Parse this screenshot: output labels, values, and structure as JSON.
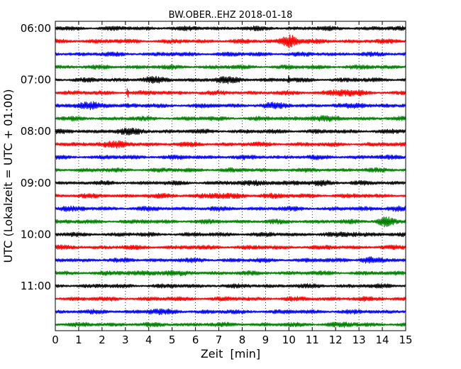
{
  "chart_data": {
    "type": "line",
    "title": "BW.OBER..EHZ 2018-01-18",
    "xlabel": "Zeit  [min]",
    "ylabel": "UTC (Lokalzeit = UTC + 01:00)",
    "xlim": [
      0,
      15
    ],
    "x_ticks": [
      "0",
      "1",
      "2",
      "3",
      "4",
      "5",
      "6",
      "7",
      "8",
      "9",
      "10",
      "11",
      "12",
      "13",
      "14",
      "15"
    ],
    "y_ticks": [
      {
        "label": "06:00",
        "row": 0
      },
      {
        "label": "07:00",
        "row": 4
      },
      {
        "label": "08:00",
        "row": 8
      },
      {
        "label": "09:00",
        "row": 12
      },
      {
        "label": "10:00",
        "row": 16
      },
      {
        "label": "11:00",
        "row": 20
      }
    ],
    "grid": "vertical-dotted",
    "row_minutes": 15,
    "series_colors": [
      "#000000",
      "#ff0000",
      "#0000ff",
      "#008000"
    ],
    "rows": [
      {
        "start": "06:00",
        "events": []
      },
      {
        "start": "06:15",
        "events": [
          {
            "t": 10.05,
            "amp": 3.2,
            "dur": 0.5
          }
        ]
      },
      {
        "start": "06:30",
        "events": []
      },
      {
        "start": "06:45",
        "events": []
      },
      {
        "start": "07:00",
        "events": [
          {
            "t": 4.1,
            "amp": 0.9,
            "dur": 0.6
          },
          {
            "t": 7.3,
            "amp": 0.8,
            "dur": 0.9
          },
          {
            "t": 10.0,
            "amp": 1.8,
            "dur": 0.05
          }
        ]
      },
      {
        "start": "07:15",
        "events": [
          {
            "t": 3.1,
            "amp": 2.5,
            "dur": 0.06
          },
          {
            "t": 12.3,
            "amp": 1.1,
            "dur": 0.9
          }
        ]
      },
      {
        "start": "07:30",
        "events": [
          {
            "t": 1.7,
            "amp": 1.2,
            "dur": 0.9
          },
          {
            "t": 9.4,
            "amp": 0.7,
            "dur": 0.8
          },
          {
            "t": 13.1,
            "amp": 0.7,
            "dur": 0.7
          }
        ]
      },
      {
        "start": "07:45",
        "events": [
          {
            "t": 11.2,
            "amp": 0.8,
            "dur": 0.9
          }
        ]
      },
      {
        "start": "08:00",
        "events": [
          {
            "t": 3.2,
            "amp": 0.8,
            "dur": 1.0
          }
        ]
      },
      {
        "start": "08:15",
        "events": [
          {
            "t": 2.4,
            "amp": 0.8,
            "dur": 1.2
          }
        ]
      },
      {
        "start": "08:30",
        "events": []
      },
      {
        "start": "08:45",
        "events": []
      },
      {
        "start": "09:00",
        "events": [
          {
            "t": 8.8,
            "amp": 0.7,
            "dur": 1.0
          },
          {
            "t": 11.4,
            "amp": 0.8,
            "dur": 0.8
          }
        ]
      },
      {
        "start": "09:15",
        "events": [
          {
            "t": 6.9,
            "amp": 0.7,
            "dur": 1.1
          },
          {
            "t": 9.1,
            "amp": 0.6,
            "dur": 0.6
          }
        ]
      },
      {
        "start": "09:30",
        "events": [
          {
            "t": 0.4,
            "amp": 0.7,
            "dur": 0.5
          },
          {
            "t": 14.5,
            "amp": 0.8,
            "dur": 0.6
          }
        ]
      },
      {
        "start": "09:45",
        "events": [
          {
            "t": 14.15,
            "amp": 2.2,
            "dur": 0.5
          }
        ]
      },
      {
        "start": "10:00",
        "events": [
          {
            "t": 12.8,
            "amp": 0.6,
            "dur": 0.9
          }
        ]
      },
      {
        "start": "10:15",
        "events": []
      },
      {
        "start": "10:30",
        "events": [
          {
            "t": 13.4,
            "amp": 1.1,
            "dur": 0.6
          }
        ]
      },
      {
        "start": "10:45",
        "events": [
          {
            "t": 4.2,
            "amp": 0.6,
            "dur": 1.5
          }
        ]
      },
      {
        "start": "11:00",
        "events": []
      },
      {
        "start": "11:15",
        "events": []
      },
      {
        "start": "11:30",
        "events": [
          {
            "t": 4.4,
            "amp": 0.5,
            "dur": 1.0
          }
        ]
      },
      {
        "start": "11:45",
        "events": [
          {
            "t": 12.3,
            "amp": 0.5,
            "dur": 0.8
          }
        ]
      }
    ]
  }
}
